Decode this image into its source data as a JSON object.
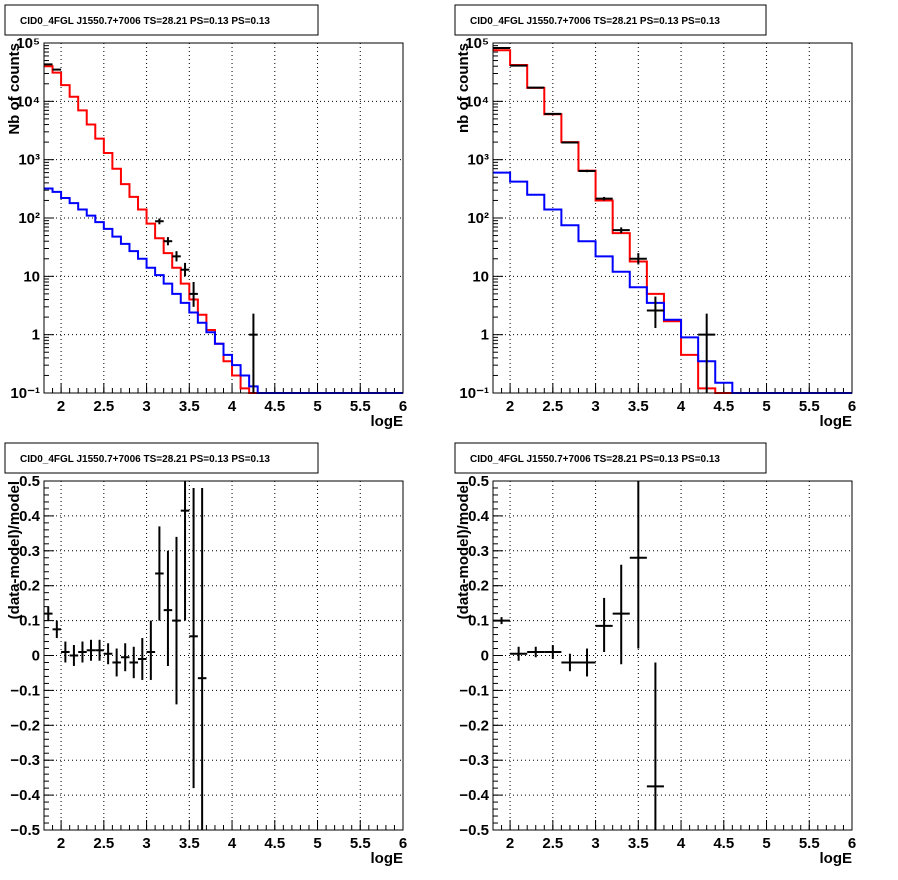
{
  "chart_data": [
    {
      "type": "histogram",
      "title": "CID0_4FGL J1550.7+7006 TS=28.21 PS=0.13 PS=0.13",
      "xlabel": "logE",
      "ylabel": "Nb of counts",
      "xlim": [
        1.8,
        6.0
      ],
      "ylim": [
        0.1,
        100000
      ],
      "yscale": "log",
      "grid": true,
      "x_ticks": [
        "2",
        "2.5",
        "3",
        "3.5",
        "4",
        "4.5",
        "5",
        "5.5",
        "6"
      ],
      "y_ticks": [
        "10⁻¹",
        "1",
        "10",
        "10²",
        "10³",
        "10⁴",
        "10⁵"
      ],
      "series": [
        {
          "color": "#ff0000",
          "style": "step",
          "bin_width": 0.1,
          "x": [
            1.85,
            1.95,
            2.05,
            2.15,
            2.25,
            2.35,
            2.45,
            2.55,
            2.65,
            2.75,
            2.85,
            2.95,
            3.05,
            3.15,
            3.25,
            3.35,
            3.45,
            3.55,
            3.65,
            3.75,
            3.85,
            3.95,
            4.05,
            4.15,
            4.25,
            4.35,
            4.45,
            4.55,
            4.65,
            4.75,
            4.85,
            4.95,
            5.05,
            5.15,
            5.25,
            5.35,
            5.45,
            5.55,
            5.65,
            5.75,
            5.85,
            5.95
          ],
          "values": [
            40000,
            31000,
            19000,
            12000,
            7000,
            4000,
            2300,
            1300,
            700,
            380,
            230,
            140,
            80,
            45,
            25,
            14,
            7.5,
            4,
            2.2,
            1.2,
            0.7,
            0.35,
            0.2,
            0.12,
            0.1,
            0.1,
            0.1,
            0.1,
            0.1,
            0.1,
            0.1,
            0.1,
            0.1,
            0.1,
            0.1,
            0.1,
            0.1,
            0.1,
            0.1,
            0.1,
            0.1,
            0.1
          ]
        },
        {
          "color": "#0000ff",
          "style": "step",
          "bin_width": 0.1,
          "x": [
            1.85,
            1.95,
            2.05,
            2.15,
            2.25,
            2.35,
            2.45,
            2.55,
            2.65,
            2.75,
            2.85,
            2.95,
            3.05,
            3.15,
            3.25,
            3.35,
            3.45,
            3.55,
            3.65,
            3.75,
            3.85,
            3.95,
            4.05,
            4.15,
            4.25,
            4.35,
            4.45,
            4.55,
            4.65,
            4.75,
            4.85,
            4.95,
            5.05,
            5.15,
            5.25,
            5.35,
            5.45,
            5.55,
            5.65,
            5.75,
            5.85,
            5.95
          ],
          "values": [
            320,
            280,
            220,
            180,
            140,
            110,
            85,
            65,
            48,
            36,
            27,
            20,
            14,
            10.5,
            7.5,
            5,
            3.5,
            2.4,
            1.6,
            1.1,
            0.7,
            0.45,
            0.3,
            0.2,
            0.13,
            0.1,
            0.1,
            0.1,
            0.1,
            0.1,
            0.1,
            0.1,
            0.1,
            0.1,
            0.1,
            0.1,
            0.1,
            0.1,
            0.1,
            0.1,
            0.1,
            0.1
          ]
        }
      ],
      "data_points": {
        "x": [
          1.85,
          1.95,
          3.15,
          3.25,
          3.35,
          3.45,
          3.55,
          4.25
        ],
        "y": [
          43000,
          35000,
          88,
          40,
          22,
          13,
          5,
          1
        ],
        "ylo": [
          42800,
          34800,
          78,
          34,
          18,
          10,
          3,
          0.1
        ],
        "yhi": [
          43200,
          35200,
          98,
          47,
          27,
          17,
          8,
          2.3
        ],
        "xerr": 0.05
      }
    },
    {
      "type": "histogram",
      "title": "CID0_4FGL J1550.7+7006 TS=28.21 PS=0.13 PS=0.13",
      "xlabel": "logE",
      "ylabel": "nb of counts",
      "xlim": [
        1.8,
        6.0
      ],
      "ylim": [
        0.1,
        100000
      ],
      "yscale": "log",
      "grid": true,
      "x_ticks": [
        "2",
        "2.5",
        "3",
        "3.5",
        "4",
        "4.5",
        "5",
        "5.5",
        "6"
      ],
      "y_ticks": [
        "10⁻¹",
        "1",
        "10",
        "10²",
        "10³",
        "10⁴",
        "10⁵"
      ],
      "series": [
        {
          "color": "#ff0000",
          "style": "step",
          "bin_width": 0.2,
          "x": [
            1.9,
            2.1,
            2.3,
            2.5,
            2.7,
            2.9,
            3.1,
            3.3,
            3.5,
            3.7,
            3.9,
            4.1,
            4.3,
            4.5,
            4.7,
            4.9,
            5.1,
            5.3,
            5.5,
            5.7,
            5.9
          ],
          "values": [
            75000,
            42000,
            17000,
            6000,
            2000,
            650,
            200,
            55,
            18,
            5,
            1.7,
            0.45,
            0.12,
            0.1,
            0.1,
            0.1,
            0.1,
            0.1,
            0.1,
            0.1,
            0.1
          ]
        },
        {
          "color": "#0000ff",
          "style": "step",
          "bin_width": 0.2,
          "x": [
            1.9,
            2.1,
            2.3,
            2.5,
            2.7,
            2.9,
            3.1,
            3.3,
            3.5,
            3.7,
            3.9,
            4.1,
            4.3,
            4.5,
            4.7,
            4.9,
            5.1,
            5.3,
            5.5,
            5.7,
            5.9
          ],
          "values": [
            600,
            420,
            250,
            140,
            75,
            40,
            22,
            12,
            6.5,
            3.5,
            1.8,
            0.9,
            0.35,
            0.15,
            0.1,
            0.1,
            0.1,
            0.1,
            0.1,
            0.1,
            0.1
          ]
        }
      ],
      "data_points": {
        "x": [
          1.9,
          2.1,
          2.3,
          2.5,
          2.7,
          2.9,
          3.1,
          3.3,
          3.5,
          3.7,
          4.3
        ],
        "y": [
          82000,
          41000,
          17200,
          6100,
          1970,
          640,
          215,
          62,
          20,
          2.6,
          1
        ],
        "ylo": [
          81700,
          40800,
          17000,
          6000,
          1900,
          610,
          200,
          55,
          16,
          1.3,
          0.1
        ],
        "yhi": [
          82300,
          41200,
          17400,
          6200,
          2040,
          670,
          230,
          69,
          25,
          4.5,
          2.3
        ],
        "xerr": 0.1
      }
    },
    {
      "type": "scatter",
      "title": "CID0_4FGL J1550.7+7006 TS=28.21 PS=0.13 PS=0.13",
      "xlabel": "logE",
      "ylabel": "(data-model)/model",
      "xlim": [
        1.8,
        6.0
      ],
      "ylim": [
        -0.5,
        0.5
      ],
      "grid": true,
      "x_ticks": [
        "2",
        "2.5",
        "3",
        "3.5",
        "4",
        "4.5",
        "5",
        "5.5",
        "6"
      ],
      "y_ticks": [
        "−0.5",
        "−0.4",
        "−0.3",
        "−0.2",
        "−0.1",
        "0",
        "0.1",
        "0.2",
        "0.3",
        "0.4",
        "0.5"
      ],
      "data_points": {
        "x": [
          1.85,
          1.95,
          2.05,
          2.15,
          2.25,
          2.35,
          2.45,
          2.55,
          2.65,
          2.75,
          2.85,
          2.95,
          3.05,
          3.15,
          3.25,
          3.35,
          3.45,
          3.55,
          3.65
        ],
        "y": [
          0.12,
          0.075,
          0.01,
          0.0,
          0.01,
          0.015,
          0.015,
          0.005,
          -0.02,
          -0.005,
          -0.02,
          -0.01,
          0.01,
          0.235,
          0.13,
          0.1,
          0.415,
          0.055,
          -0.065
        ],
        "ylo": [
          0.1,
          0.05,
          -0.02,
          -0.03,
          -0.02,
          -0.015,
          -0.015,
          -0.025,
          -0.06,
          -0.045,
          -0.065,
          -0.07,
          -0.07,
          0.1,
          -0.03,
          -0.14,
          0.1,
          -0.38,
          -0.5
        ],
        "yhi": [
          0.14,
          0.1,
          0.04,
          0.03,
          0.04,
          0.045,
          0.045,
          0.035,
          0.02,
          0.035,
          0.025,
          0.05,
          0.1,
          0.37,
          0.3,
          0.34,
          0.5,
          0.48,
          0.48
        ],
        "xerr": 0.05
      }
    },
    {
      "type": "scatter",
      "title": "CID0_4FGL J1550.7+7006 TS=28.21 PS=0.13 PS=0.13",
      "xlabel": "logE",
      "ylabel": "(data-model)/model",
      "xlim": [
        1.8,
        6.0
      ],
      "ylim": [
        -0.5,
        0.5
      ],
      "grid": true,
      "x_ticks": [
        "2",
        "2.5",
        "3",
        "3.5",
        "4",
        "4.5",
        "5",
        "5.5",
        "6"
      ],
      "y_ticks": [
        "−0.5",
        "−0.4",
        "−0.3",
        "−0.2",
        "−0.1",
        "0",
        "0.1",
        "0.2",
        "0.3",
        "0.4",
        "0.5"
      ],
      "data_points": {
        "x": [
          1.9,
          2.1,
          2.3,
          2.5,
          2.7,
          2.9,
          3.1,
          3.3,
          3.5,
          3.7
        ],
        "y": [
          0.1,
          0.005,
          0.01,
          0.01,
          -0.02,
          -0.02,
          0.085,
          0.12,
          0.28,
          -0.375
        ],
        "ylo": [
          0.09,
          -0.015,
          -0.005,
          -0.01,
          -0.045,
          -0.06,
          0.01,
          -0.025,
          0.02,
          -0.5
        ],
        "yhi": [
          0.11,
          0.025,
          0.025,
          0.03,
          0.005,
          0.02,
          0.165,
          0.26,
          0.5,
          -0.02
        ],
        "xerr": 0.1
      }
    }
  ]
}
